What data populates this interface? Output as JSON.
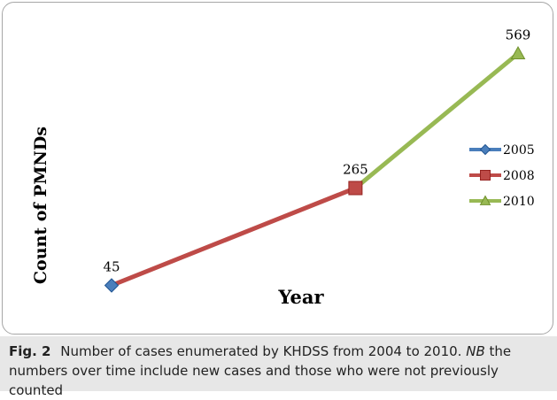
{
  "chart_data": {
    "type": "line",
    "xlabel": "Year",
    "ylabel": "Count of PMNDs",
    "legend_placement": "right",
    "grid": false,
    "points": [
      {
        "year": "2005",
        "value": 45
      },
      {
        "year": "2008",
        "value": 265
      },
      {
        "year": "2010",
        "value": 569
      }
    ],
    "series": [
      {
        "name": "2005",
        "color": "#4a7ebb",
        "marker": "diamond"
      },
      {
        "name": "2008",
        "color": "#be4b48",
        "marker": "square"
      },
      {
        "name": "2010",
        "color": "#98b954",
        "marker": "triangle"
      }
    ],
    "segments": [
      {
        "from": 0,
        "to": 1,
        "color": "#be4b48"
      },
      {
        "from": 1,
        "to": 2,
        "color": "#98b954"
      }
    ]
  },
  "caption": {
    "label": "Fig. 2",
    "text": "Number of cases enumerated by KHDSS from 2004 to 2010.",
    "nb_label": "NB",
    "nb_text": "the numbers over time include new cases and those who were not previously counted"
  }
}
